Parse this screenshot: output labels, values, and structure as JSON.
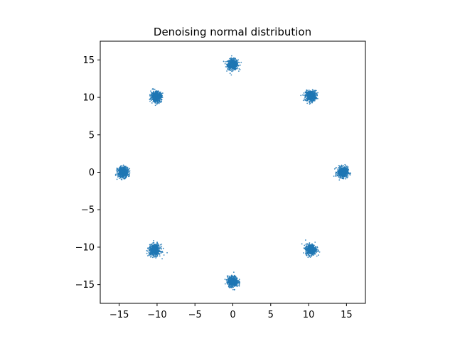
{
  "chart_data": {
    "type": "scatter",
    "title": "Denoising normal distribution",
    "xlabel": "",
    "ylabel": "",
    "xlim": [
      -17.5,
      17.5
    ],
    "ylim": [
      -17.5,
      17.5
    ],
    "xticks": [
      -15,
      -10,
      -5,
      0,
      5,
      10,
      15
    ],
    "yticks": [
      -15,
      -10,
      -5,
      0,
      5,
      10,
      15
    ],
    "xtick_labels": [
      "−15",
      "−10",
      "−5",
      "0",
      "5",
      "10",
      "15"
    ],
    "ytick_labels": [
      "−15",
      "−10",
      "−5",
      "0",
      "5",
      "10",
      "15"
    ],
    "grid": false,
    "point_color": "#1f77b4",
    "clusters": [
      {
        "center": [
          0.0,
          14.4
        ],
        "spread": 0.35
      },
      {
        "center": [
          10.3,
          10.2
        ],
        "spread": 0.35
      },
      {
        "center": [
          14.5,
          0.0
        ],
        "spread": 0.35
      },
      {
        "center": [
          10.3,
          -10.3
        ],
        "spread": 0.35
      },
      {
        "center": [
          0.0,
          -14.6
        ],
        "spread": 0.35
      },
      {
        "center": [
          -10.3,
          -10.4
        ],
        "spread": 0.38
      },
      {
        "center": [
          -14.5,
          0.0
        ],
        "spread": 0.35
      },
      {
        "center": [
          -10.1,
          10.1
        ],
        "spread": 0.35
      }
    ]
  }
}
